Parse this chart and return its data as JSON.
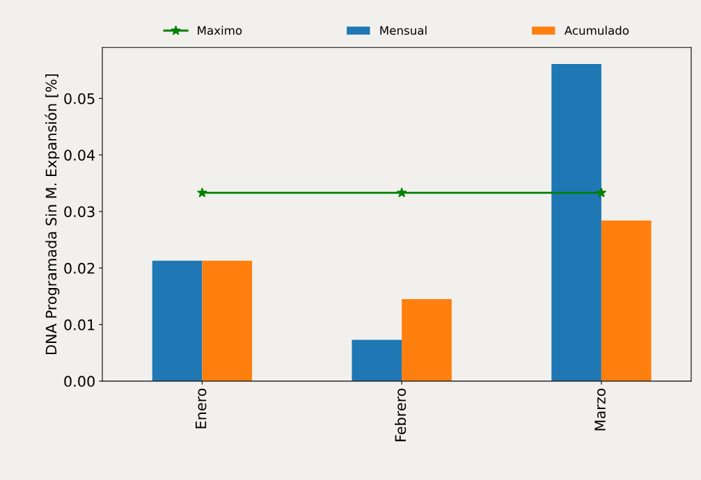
{
  "chart_data": {
    "type": "bar",
    "ylabel": "DNA Programada Sin M. Expansión [%]",
    "categories": [
      "Enero",
      "Febrero",
      "Marzo"
    ],
    "series": [
      {
        "name": "Maximo",
        "type": "line",
        "color": "#008000",
        "marker": "star",
        "values": [
          0.0333,
          0.0333,
          0.0333
        ]
      },
      {
        "name": "Mensual",
        "color": "#1f77b4",
        "values": [
          0.0213,
          0.0073,
          0.0561
        ]
      },
      {
        "name": "Acumulado",
        "color": "#ff7f0e",
        "values": [
          0.0213,
          0.0145,
          0.0284
        ]
      }
    ],
    "ylim": [
      0,
      0.059
    ],
    "yticks": [
      {
        "value": 0,
        "label": "0.00"
      },
      0.01,
      0.02,
      0.03,
      0.04,
      0.05
    ],
    "grid": false,
    "legend": "top"
  }
}
